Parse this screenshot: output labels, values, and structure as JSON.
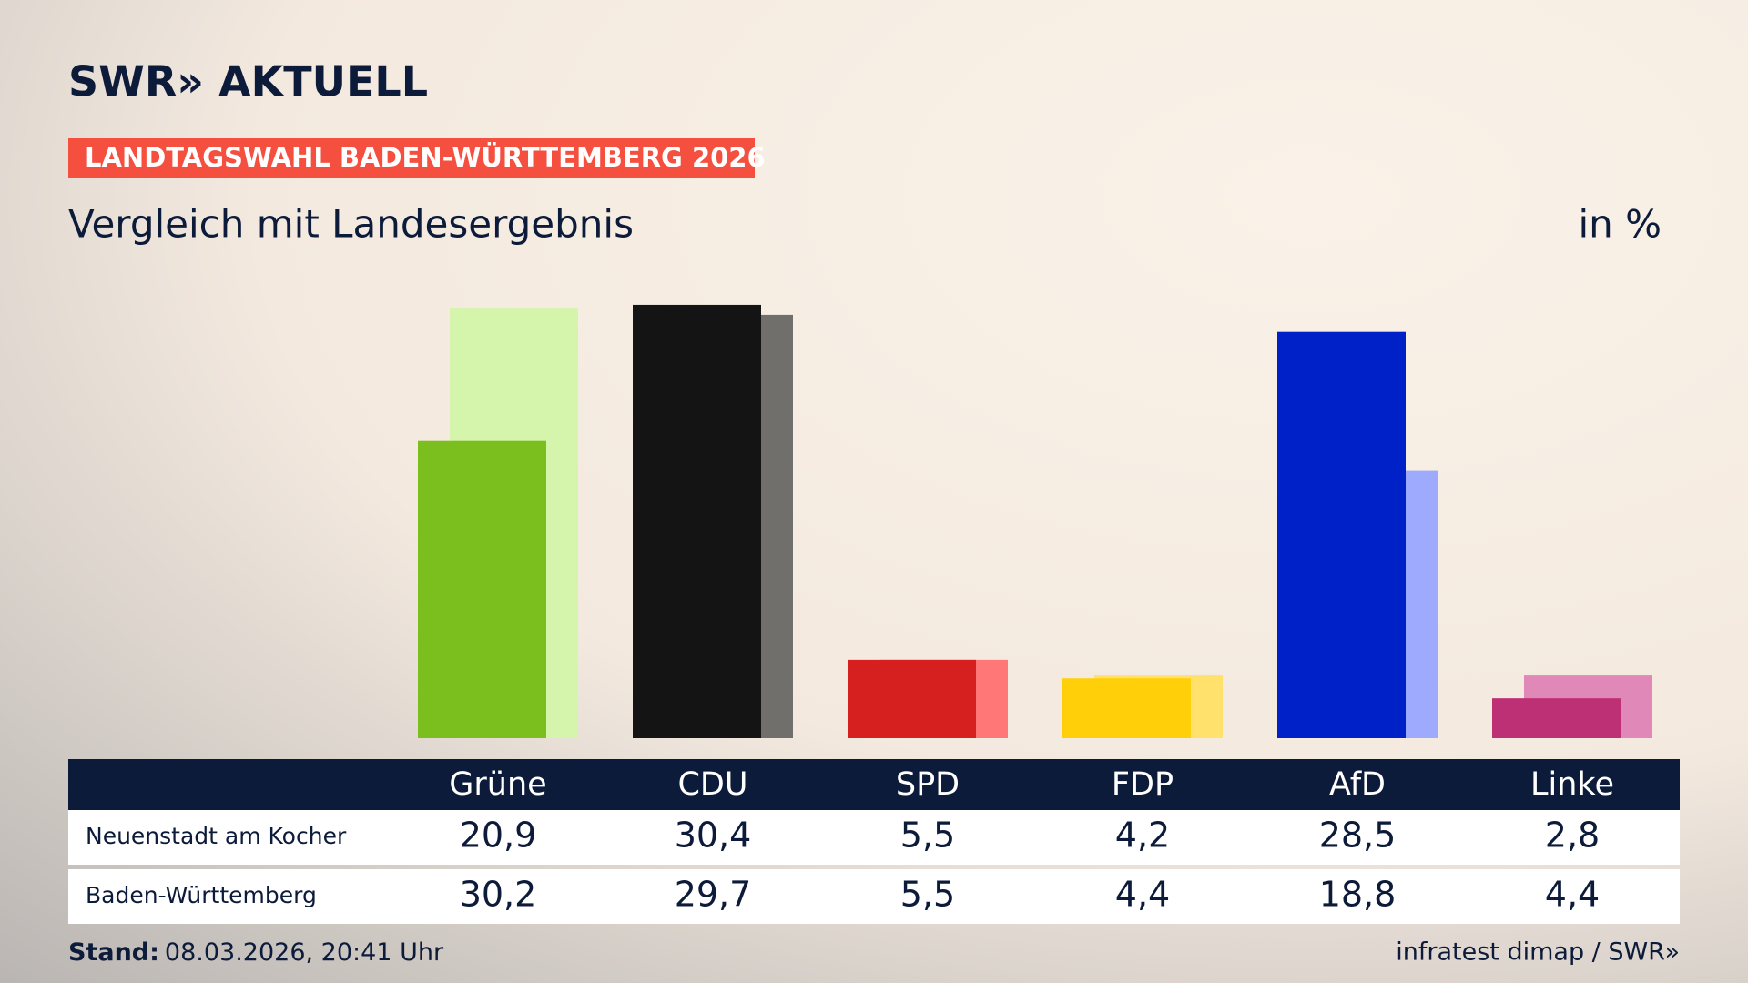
{
  "header": {
    "logo": "SWR» AKTUELL",
    "badge": "LANDTAGSWAHL BADEN-WÜRTTEMBERG 2026"
  },
  "chart_data": {
    "type": "bar",
    "title": "Vergleich mit Landesergebnis",
    "unit": "in %",
    "categories": [
      "Grüne",
      "CDU",
      "SPD",
      "FDP",
      "AfD",
      "Linke"
    ],
    "series": [
      {
        "name": "Neuenstadt am Kocher",
        "color": [
          "#7abf1e",
          "#141414",
          "#d61f1f",
          "#ffcf0a",
          "#0021c8",
          "#be3075"
        ],
        "values": [
          20.9,
          30.4,
          5.5,
          4.2,
          28.5,
          2.8
        ],
        "value_labels": [
          "20,9",
          "30,4",
          "5,5",
          "4,2",
          "28,5",
          "2,8"
        ]
      },
      {
        "name": "Baden-Württemberg",
        "color": [
          "#d6f5ac",
          "#706f6c",
          "#ff7777",
          "#ffe16b",
          "#9eaafe",
          "#e088b8"
        ],
        "values": [
          30.2,
          29.7,
          5.5,
          4.4,
          18.8,
          4.4
        ],
        "value_labels": [
          "30,2",
          "29,7",
          "5,5",
          "4,4",
          "18,8",
          "4,4"
        ]
      }
    ]
  },
  "footer": {
    "stand_label": "Stand:",
    "stand": "08.03.2026, 20:41 Uhr",
    "source": "infratest dimap / SWR»"
  }
}
